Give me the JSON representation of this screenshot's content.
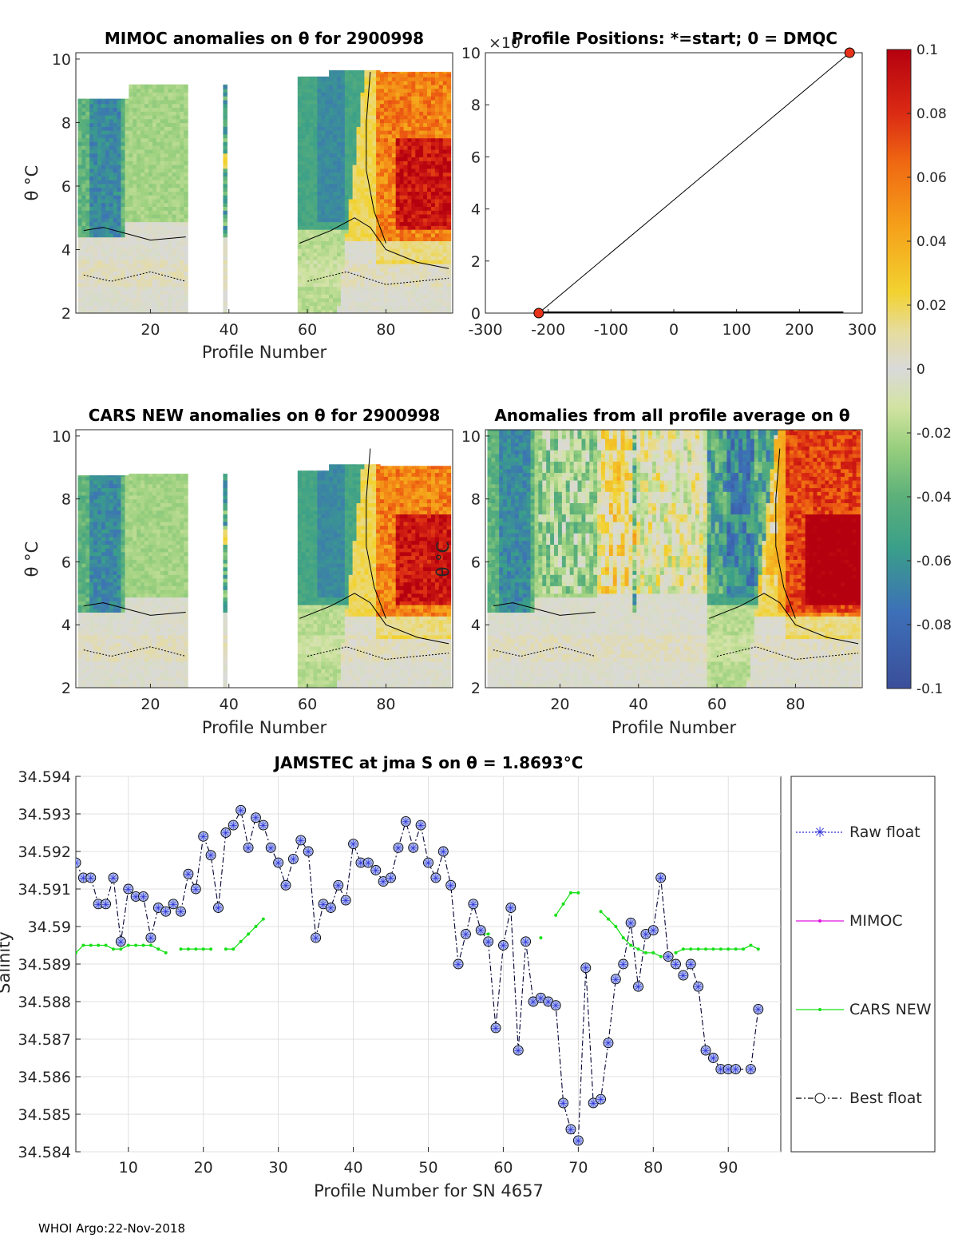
{
  "chart_data": [
    {
      "type": "heatmap",
      "id": "mimoc",
      "title": "MIMOC anomalies on θ  for 2900998",
      "xlabel": "Profile Number",
      "ylabel": "θ °C",
      "xlim": [
        1,
        97
      ],
      "ylim": [
        2,
        10.2
      ],
      "xticks": [
        20,
        40,
        60,
        80
      ],
      "yticks": [
        2,
        4,
        6,
        8,
        10
      ]
    },
    {
      "type": "line",
      "id": "positions",
      "title": "Profile Positions: *=start; 0 = DMQC",
      "exponent_label": "×10",
      "xlim": [
        -300,
        300
      ],
      "ylim": [
        0,
        10
      ],
      "xticks": [
        -300,
        -200,
        -100,
        0,
        100,
        200,
        300
      ],
      "yticks": [
        0,
        2,
        4,
        6,
        8,
        10
      ],
      "track": {
        "x": [
          -215,
          280
        ],
        "y": [
          0,
          10
        ]
      },
      "start_marker": {
        "x": -215,
        "y": 0
      },
      "end_marker": {
        "x": 280,
        "y": 10
      }
    },
    {
      "type": "heatmap",
      "id": "cars",
      "title": "CARS NEW anomalies on θ for 2900998",
      "xlabel": "Profile Number",
      "ylabel": "θ °C",
      "xlim": [
        1,
        97
      ],
      "ylim": [
        2,
        10.2
      ],
      "xticks": [
        20,
        40,
        60,
        80
      ],
      "yticks": [
        2,
        4,
        6,
        8,
        10
      ]
    },
    {
      "type": "heatmap",
      "id": "allavg",
      "title": "Anomalies from all profile average on θ",
      "xlabel": "Profile Number",
      "ylabel": "θ °C",
      "xlim": [
        1,
        97
      ],
      "ylim": [
        2,
        10.2
      ],
      "xticks": [
        20,
        40,
        60,
        80
      ],
      "yticks": [
        2,
        4,
        6,
        8,
        10
      ]
    },
    {
      "type": "colorbar",
      "id": "colorbar",
      "range": [
        -0.1,
        0.1
      ],
      "tick_labels": [
        "0.1",
        "0.08",
        "0.06",
        "0.04",
        "0.02",
        "0",
        "-0.02",
        "-0.04",
        "-0.06",
        "-0.08",
        "-0.1"
      ]
    },
    {
      "type": "line",
      "id": "salinity",
      "title": "JAMSTEC at jma S on θ = 1.8693°C",
      "xlabel": "Profile Number for SN 4657",
      "ylabel": "Salinity",
      "xlim": [
        3,
        97
      ],
      "ylim": [
        34.584,
        34.594
      ],
      "xticks": [
        10,
        20,
        30,
        40,
        50,
        60,
        70,
        80,
        90
      ],
      "yticks": [
        "34.584",
        "34.585",
        "34.586",
        "34.587",
        "34.588",
        "34.589",
        "34.59",
        "34.591",
        "34.592",
        "34.593",
        "34.594"
      ],
      "legend": [
        "Raw float",
        "MIMOC",
        "CARS NEW",
        "Best float"
      ],
      "series": [
        {
          "name": "Best float",
          "x": [
            3,
            4,
            5,
            6,
            7,
            8,
            9,
            10,
            11,
            12,
            13,
            14,
            15,
            16,
            17,
            18,
            19,
            20,
            21,
            22,
            23,
            24,
            25,
            26,
            27,
            28,
            29,
            30,
            31,
            32,
            33,
            34,
            35,
            36,
            37,
            38,
            39,
            40,
            41,
            42,
            43,
            44,
            45,
            46,
            47,
            48,
            49,
            50,
            51,
            52,
            53,
            54,
            55,
            56,
            57,
            58,
            59,
            60,
            61,
            62,
            63,
            64,
            65,
            66,
            67,
            68,
            69,
            70,
            71,
            72,
            73,
            74,
            75,
            76,
            77,
            78,
            79,
            80,
            81,
            82,
            83,
            84,
            85,
            86,
            87,
            88,
            89,
            90,
            91,
            93,
            94
          ],
          "y": [
            34.5917,
            34.5913,
            34.5913,
            34.5906,
            34.5906,
            34.5913,
            34.5896,
            34.591,
            34.5908,
            34.5908,
            34.5897,
            34.5905,
            34.5904,
            34.5906,
            34.5904,
            34.5914,
            34.591,
            34.5924,
            34.5919,
            34.5905,
            34.5925,
            34.5927,
            34.5931,
            34.5921,
            34.5929,
            34.5927,
            34.5921,
            34.5917,
            34.5911,
            34.5918,
            34.5923,
            34.592,
            34.5897,
            34.5906,
            34.5905,
            34.5911,
            34.5907,
            34.5922,
            34.5917,
            34.5917,
            34.5915,
            34.5912,
            34.5913,
            34.5921,
            34.5928,
            34.5921,
            34.5927,
            34.5917,
            34.5913,
            34.592,
            34.5911,
            34.589,
            34.5898,
            34.5906,
            34.5899,
            34.5896,
            34.5873,
            34.5895,
            34.5905,
            34.5867,
            34.5896,
            34.588,
            34.5881,
            34.588,
            34.5879,
            34.5853,
            34.5846,
            34.5843,
            34.5889,
            34.5853,
            34.5854,
            34.5869,
            34.5886,
            34.589,
            34.5901,
            34.5884,
            34.5898,
            34.5899,
            34.5913,
            34.5892,
            34.589,
            34.5887,
            34.589,
            34.5884,
            34.5867,
            34.5865,
            34.5862,
            34.5862,
            34.5862,
            34.5862,
            34.5878
          ]
        },
        {
          "name": "CARS NEW",
          "segments": [
            {
              "x": [
                3,
                4,
                5,
                6,
                7,
                8,
                9,
                10,
                11,
                12,
                13,
                14,
                15
              ],
              "y": [
                34.5893,
                34.5895,
                34.5895,
                34.5895,
                34.5895,
                34.5894,
                34.5894,
                34.5895,
                34.5895,
                34.5895,
                34.5895,
                34.5894,
                34.5893
              ]
            },
            {
              "x": [
                17,
                18,
                19,
                20,
                21
              ],
              "y": [
                34.5894,
                34.5894,
                34.5894,
                34.5894,
                34.5894
              ]
            },
            {
              "x": [
                23,
                24,
                25,
                26,
                27,
                28
              ],
              "y": [
                34.5894,
                34.5894,
                34.5896,
                34.5898,
                34.59,
                34.5902
              ]
            },
            {
              "x": [
                57,
                58
              ],
              "y": [
                34.5898,
                34.5898
              ]
            },
            {
              "x": [
                65
              ],
              "y": [
                34.5897
              ]
            },
            {
              "x": [
                67,
                68,
                69,
                70
              ],
              "y": [
                34.5903,
                34.5906,
                34.5909,
                34.5909
              ]
            },
            {
              "x": [
                73,
                74,
                75,
                76,
                77,
                78,
                79,
                80,
                81
              ],
              "y": [
                34.5904,
                34.5902,
                34.59,
                34.5897,
                34.5895,
                34.5894,
                34.5893,
                34.5893,
                34.5892
              ]
            },
            {
              "x": [
                83,
                84,
                85,
                86,
                87,
                88,
                89,
                90,
                91,
                92,
                93,
                94
              ],
              "y": [
                34.5893,
                34.5894,
                34.5894,
                34.5894,
                34.5894,
                34.5894,
                34.5894,
                34.5894,
                34.5894,
                34.5894,
                34.5895,
                34.5894
              ]
            }
          ]
        }
      ]
    }
  ],
  "footer": "WHOI Argo:22-Nov-2018"
}
